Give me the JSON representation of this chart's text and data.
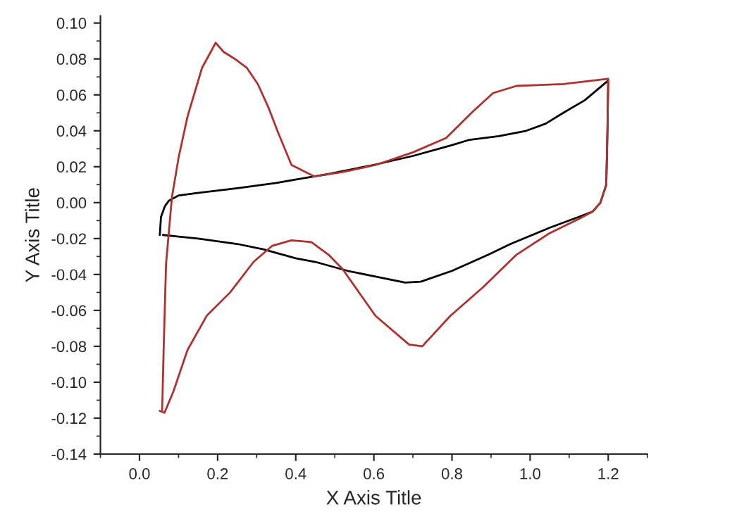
{
  "chart_data": {
    "type": "line",
    "xlabel": "X Axis Title",
    "ylabel": "Y Axis Title",
    "xlim": [
      -0.1,
      1.3
    ],
    "ylim": [
      -0.14,
      0.104
    ],
    "xticks": [
      {
        "value": 0.0,
        "label": "0.0"
      },
      {
        "value": 0.2,
        "label": "0.2"
      },
      {
        "value": 0.4,
        "label": "0.4"
      },
      {
        "value": 0.6,
        "label": "0.6"
      },
      {
        "value": 0.8,
        "label": "0.8"
      },
      {
        "value": 1.0,
        "label": "1.0"
      },
      {
        "value": 1.2,
        "label": "1.2"
      }
    ],
    "yticks": [
      {
        "value": -0.14,
        "label": "-0.14"
      },
      {
        "value": -0.12,
        "label": "-0.12"
      },
      {
        "value": -0.1,
        "label": "-0.10"
      },
      {
        "value": -0.08,
        "label": "-0.08"
      },
      {
        "value": -0.06,
        "label": "-0.06"
      },
      {
        "value": -0.04,
        "label": "-0.04"
      },
      {
        "value": -0.02,
        "label": "-0.02"
      },
      {
        "value": 0.0,
        "label": "0.00"
      },
      {
        "value": 0.02,
        "label": "0.02"
      },
      {
        "value": 0.04,
        "label": "0.04"
      },
      {
        "value": 0.06,
        "label": "0.06"
      },
      {
        "value": 0.08,
        "label": "0.08"
      },
      {
        "value": 0.1,
        "label": "0.10"
      }
    ],
    "grid": false,
    "marker": "none",
    "line_style": "solid",
    "series": [
      {
        "color": "#000000",
        "x": [
          0.052,
          0.055,
          0.065,
          0.075,
          0.1,
          0.148,
          0.25,
          0.35,
          0.484,
          0.6,
          0.7,
          0.8,
          0.845,
          0.92,
          0.99,
          1.04,
          1.085,
          1.14,
          1.2,
          1.198,
          1.195,
          1.18,
          1.16,
          1.13,
          1.05,
          0.95,
          0.893,
          0.8,
          0.72,
          0.68,
          0.6,
          0.533,
          0.45,
          0.4,
          0.317,
          0.25,
          0.15,
          0.06
        ],
        "values": [
          -0.018,
          -0.008,
          -0.002,
          0.001,
          0.004,
          0.0054,
          0.008,
          0.011,
          0.016,
          0.021,
          0.026,
          0.032,
          0.035,
          0.037,
          0.04,
          0.044,
          0.05,
          0.057,
          0.068,
          0.04,
          0.01,
          0.0,
          -0.005,
          -0.0075,
          -0.014,
          -0.023,
          -0.029,
          -0.038,
          -0.044,
          -0.0445,
          -0.041,
          -0.038,
          -0.033,
          -0.031,
          -0.026,
          -0.023,
          -0.02,
          -0.018
        ]
      },
      {
        "color": "#b03030",
        "x": [
          0.058,
          0.062,
          0.068,
          0.083,
          0.1,
          0.123,
          0.16,
          0.195,
          0.215,
          0.244,
          0.275,
          0.303,
          0.33,
          0.353,
          0.389,
          0.447,
          0.52,
          0.605,
          0.7,
          0.785,
          0.85,
          0.905,
          0.965,
          1.085,
          1.2,
          1.198,
          1.195,
          1.18,
          1.16,
          1.13,
          1.05,
          0.965,
          0.88,
          0.796,
          0.724,
          0.69,
          0.604,
          0.52,
          0.484,
          0.44,
          0.389,
          0.34,
          0.292,
          0.232,
          0.172,
          0.123,
          0.087,
          0.064,
          0.052
        ],
        "values": [
          -0.116,
          -0.08,
          -0.034,
          0.003,
          0.025,
          0.048,
          0.075,
          0.089,
          0.084,
          0.08,
          0.075,
          0.066,
          0.053,
          0.04,
          0.021,
          0.0146,
          0.017,
          0.021,
          0.028,
          0.036,
          0.05,
          0.061,
          0.065,
          0.066,
          0.069,
          0.04,
          0.01,
          0.0,
          -0.005,
          -0.0085,
          -0.017,
          -0.029,
          -0.047,
          -0.063,
          -0.08,
          -0.079,
          -0.063,
          -0.037,
          -0.029,
          -0.022,
          -0.021,
          -0.024,
          -0.033,
          -0.05,
          -0.063,
          -0.082,
          -0.105,
          -0.117,
          -0.116
        ]
      }
    ]
  }
}
